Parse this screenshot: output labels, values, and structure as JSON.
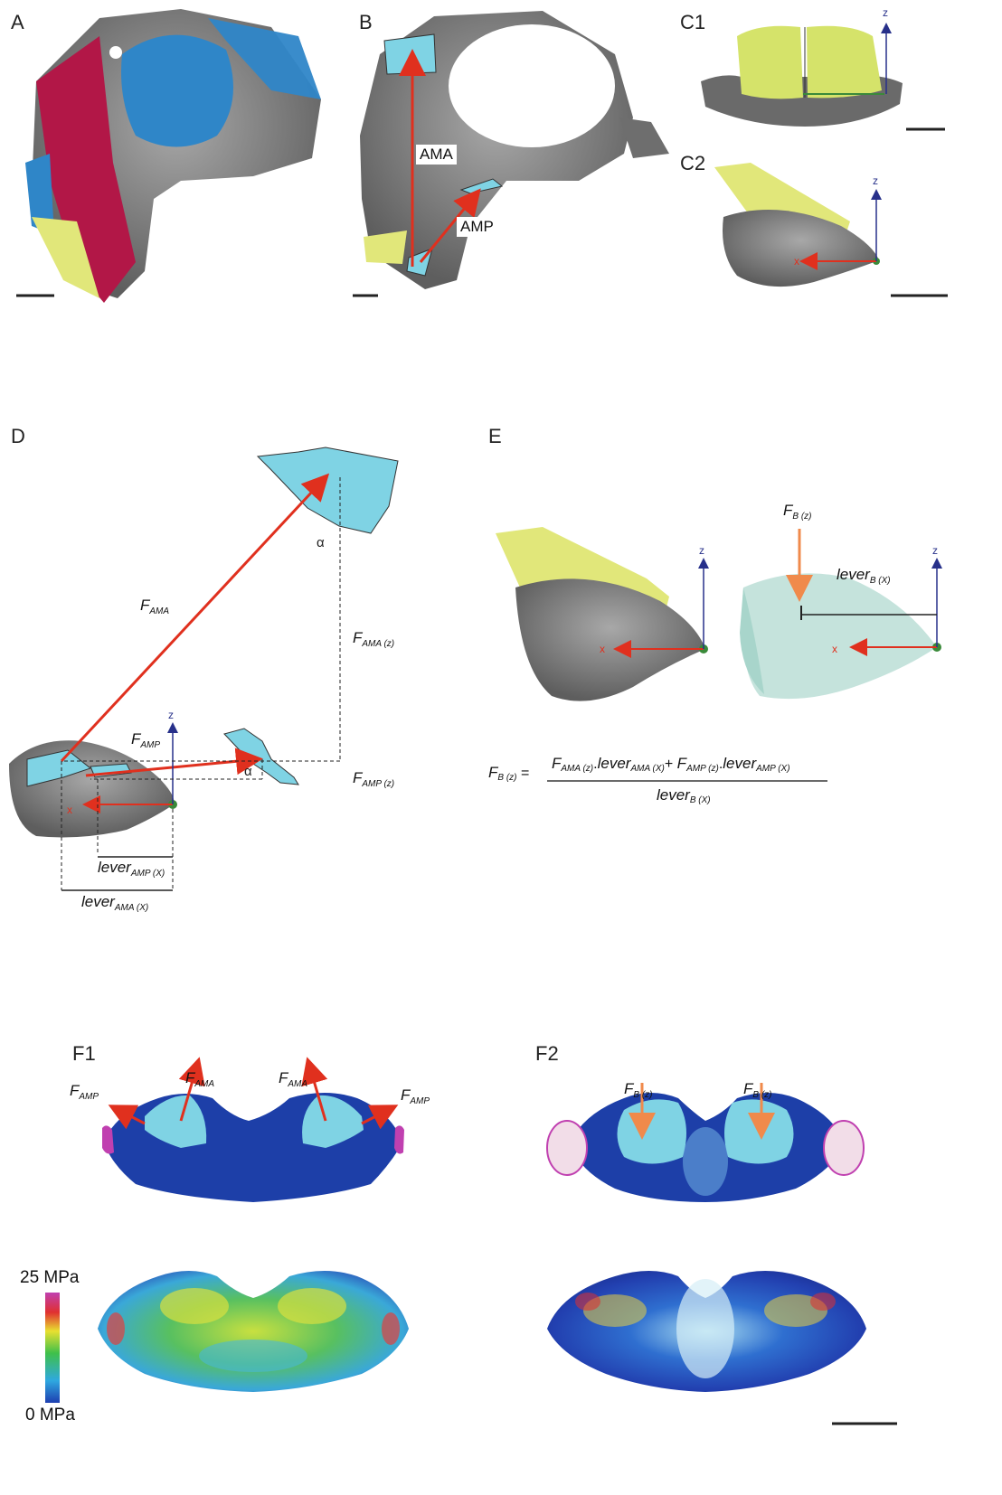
{
  "panels": {
    "A": "A",
    "B": "B",
    "C1": "C1",
    "C2": "C2",
    "D": "D",
    "E": "E",
    "F1": "F1",
    "F2": "F2"
  },
  "labels": {
    "ama": "AMA",
    "amp": "AMP",
    "axis_z": "z",
    "axis_x": "x",
    "alpha": "α",
    "F": "F",
    "sub_ama": "AMA",
    "sub_amp": "AMP",
    "sub_ama_z": "AMA (z)",
    "sub_amp_z": "AMP (z)",
    "lever": "lever",
    "sub_amp_x": "AMP (X)",
    "sub_ama_x": "AMA (X)",
    "sub_b_z": "B (z)",
    "sub_b_x": "B (X)"
  },
  "formula": {
    "lhs_F": "F",
    "lhs_sub": "B (z)",
    "eq": "=",
    "num_1_F": "F",
    "num_1_sub": "AMA (z)",
    "dot1": ".",
    "num_1_lever": "lever",
    "num_1_lever_sub": "AMA (X)",
    "plus": "+",
    "num_2_F": "F",
    "num_2_sub": "AMP (z)",
    "dot2": ".",
    "num_2_lever": "lever",
    "num_2_lever_sub": "AMP (X)",
    "den_lever": "lever",
    "den_sub": "B (X)"
  },
  "scale": {
    "max": "25 MPa",
    "min": "0 MPa"
  },
  "colors": {
    "bone": "#7d7d7d",
    "muscle_blue": "#2f86c8",
    "muscle_red": "#b21747",
    "cartilage_yellow": "#e1e77a",
    "attachment_cyan": "#7fd3e4",
    "arrow_red": "#e0301e",
    "arrow_orange": "#f08a4b",
    "axis_blue": "#27308a",
    "stress_blue": "#1d3fa8",
    "pivot_green": "#3a8a3a"
  }
}
